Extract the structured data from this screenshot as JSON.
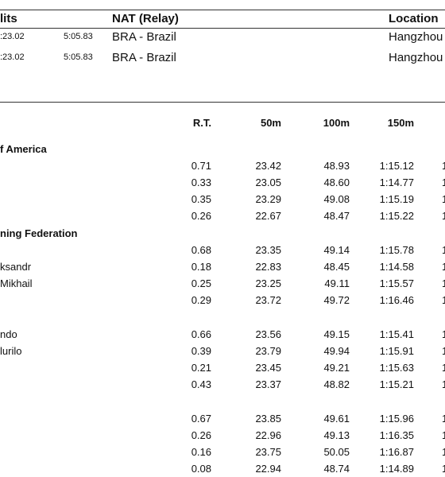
{
  "records": {
    "headers": [
      "lits",
      "NAT (Relay)",
      "Location"
    ],
    "rows": [
      {
        "time": ":23.02",
        "total": "5:05.83",
        "nat": "BRA - Brazil",
        "location": "Hangzhou"
      },
      {
        "time": ":23.02",
        "total": "5:05.83",
        "nat": "BRA - Brazil",
        "location": "Hangzhou"
      }
    ]
  },
  "results": {
    "headers": [
      "R.T.",
      "50m",
      "100m",
      "150m"
    ],
    "teams": [
      {
        "name": "f America",
        "rows": [
          {
            "cells": [
              "0.71",
              "23.42",
              "48.93",
              "1:15.12"
            ],
            "next": "1"
          },
          {
            "cells": [
              "0.33",
              "23.05",
              "48.60",
              "1:14.77"
            ],
            "next": "1"
          },
          {
            "cells": [
              "0.35",
              "23.29",
              "49.08",
              "1:15.19"
            ],
            "next": "1"
          },
          {
            "cells": [
              "0.26",
              "22.67",
              "48.47",
              "1:15.22"
            ],
            "next": "1"
          }
        ]
      },
      {
        "name": "ning Federation",
        "rows": [
          {
            "cells": [
              "0.68",
              "23.35",
              "49.14",
              "1:15.78"
            ],
            "next": "1"
          },
          {
            "swimmer": "ksandr",
            "cells": [
              "0.18",
              "22.83",
              "48.45",
              "1:14.58"
            ],
            "next": "1"
          },
          {
            "swimmer": "Mikhail",
            "cells": [
              "0.25",
              "23.25",
              "49.11",
              "1:15.57"
            ],
            "next": "1"
          },
          {
            "cells": [
              "0.29",
              "23.72",
              "49.72",
              "1:16.46"
            ],
            "next": "1"
          }
        ]
      },
      {
        "rows": [
          {
            "swimmer": "ndo",
            "cells": [
              "0.66",
              "23.56",
              "49.15",
              "1:15.41"
            ],
            "next": "1"
          },
          {
            "swimmer": "lurilo",
            "cells": [
              "0.39",
              "23.79",
              "49.94",
              "1:15.91"
            ],
            "next": "1"
          },
          {
            "cells": [
              "0.21",
              "23.45",
              "49.21",
              "1:15.63"
            ],
            "next": "1"
          },
          {
            "cells": [
              "0.43",
              "23.37",
              "48.82",
              "1:15.21"
            ],
            "next": "1"
          }
        ]
      },
      {
        "rows": [
          {
            "cells": [
              "0.67",
              "23.85",
              "49.61",
              "1:15.96"
            ],
            "next": "1"
          },
          {
            "cells": [
              "0.26",
              "22.96",
              "49.13",
              "1:16.35"
            ],
            "next": "1"
          },
          {
            "cells": [
              "0.16",
              "23.75",
              "50.05",
              "1:16.87"
            ],
            "next": "1"
          },
          {
            "cells": [
              "0.08",
              "22.94",
              "48.74",
              "1:14.89"
            ],
            "next": "1"
          }
        ]
      }
    ]
  }
}
